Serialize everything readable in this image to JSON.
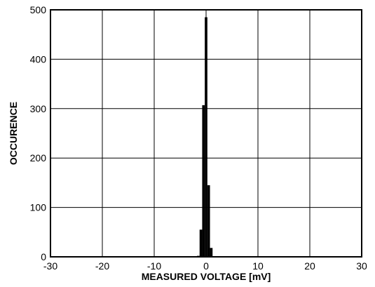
{
  "chart_data": {
    "type": "bar",
    "title": "",
    "xlabel": "MEASURED VOLTAGE [mV]",
    "ylabel": "OCCURENCE",
    "xlim": [
      -30,
      30
    ],
    "ylim": [
      0,
      500
    ],
    "xticks": [
      -30,
      -20,
      -10,
      0,
      10,
      20,
      30
    ],
    "yticks": [
      0,
      100,
      200,
      300,
      400,
      500
    ],
    "grid": true,
    "bin_width": 0.5,
    "bins": [
      {
        "x": -1.5,
        "value": 2
      },
      {
        "x": -1.0,
        "value": 55
      },
      {
        "x": -0.5,
        "value": 307
      },
      {
        "x": 0.0,
        "value": 485
      },
      {
        "x": 0.5,
        "value": 145
      },
      {
        "x": 1.0,
        "value": 18
      }
    ]
  }
}
